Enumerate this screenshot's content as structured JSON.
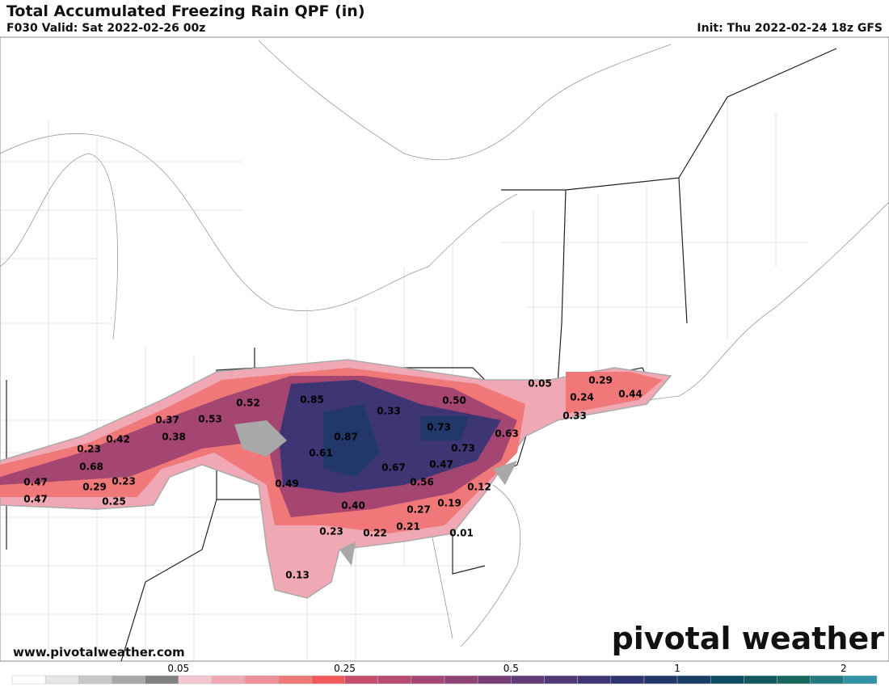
{
  "header": {
    "title": "Total Accumulated Freezing Rain QPF (in)",
    "valid": "F030 Valid: Sat 2022-02-26 00z",
    "init": "Init: Thu 2022-02-24 18z GFS"
  },
  "map": {
    "point_labels": [
      "0.85",
      "0.52",
      "0.53",
      "0.37",
      "0.42",
      "0.23",
      "0.68",
      "0.38",
      "0.47",
      "0.29",
      "0.23",
      "0.47",
      "0.25",
      "0.33",
      "0.50",
      "0.73",
      "0.63",
      "0.73",
      "0.87",
      "0.61",
      "0.67",
      "0.47",
      "0.49",
      "0.56",
      "0.12",
      "0.40",
      "0.27",
      "0.19",
      "0.21",
      "0.23",
      "0.22",
      "0.01",
      "0.13",
      "0.05",
      "0.29",
      "0.24",
      "0.44",
      "0.33"
    ]
  },
  "colorbar": {
    "colors": [
      "#ffffff",
      "#e6e6e6",
      "#c8c8c8",
      "#a8a8a8",
      "#808080",
      "#f2c6cf",
      "#f0a9b4",
      "#ee8f99",
      "#f07878",
      "#f25a5a",
      "#c84c6e",
      "#b84970",
      "#a54672",
      "#8e4273",
      "#763d74",
      "#623a76",
      "#503877",
      "#3d3574",
      "#2e3470",
      "#22386b",
      "#163e66",
      "#104962",
      "#12585f",
      "#17675e",
      "#207a7f",
      "#3194a4"
    ],
    "ticks": [
      "0.05",
      "0.25",
      "0.5",
      "1",
      "2"
    ]
  },
  "watermark": {
    "site": "www.pivotalweather.com",
    "logo": "pivotal weather"
  }
}
